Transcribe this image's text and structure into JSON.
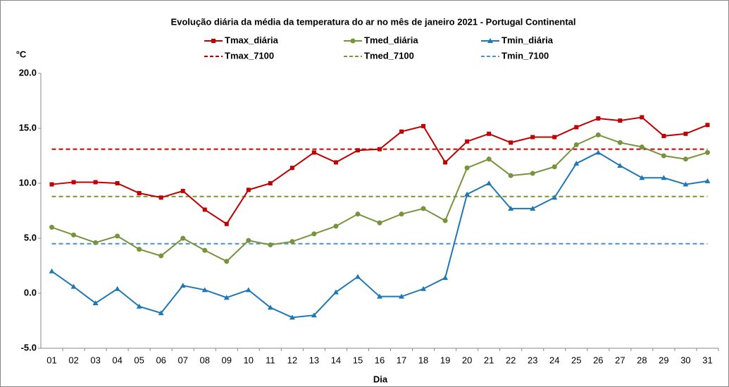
{
  "chart_data": {
    "type": "line",
    "title": "Evolução diária da média da temperatura do ar no mês de janeiro 2021 - Portugal Continental",
    "y_label": "°C",
    "x_label": "Dia",
    "categories": [
      "01",
      "02",
      "03",
      "04",
      "05",
      "06",
      "07",
      "08",
      "09",
      "10",
      "11",
      "12",
      "13",
      "14",
      "15",
      "16",
      "17",
      "18",
      "19",
      "20",
      "21",
      "22",
      "23",
      "24",
      "25",
      "26",
      "27",
      "28",
      "29",
      "30",
      "31"
    ],
    "series": [
      {
        "name": "Tmax_diária",
        "color": "#c00000",
        "marker": "square",
        "values": [
          9.9,
          10.1,
          10.1,
          10.0,
          9.1,
          8.7,
          9.3,
          7.6,
          6.3,
          9.4,
          10.0,
          11.4,
          12.8,
          11.9,
          13.0,
          13.1,
          14.7,
          15.2,
          11.9,
          13.8,
          14.5,
          13.7,
          14.2,
          14.2,
          15.1,
          15.9,
          15.7,
          16.0,
          14.3,
          14.5,
          15.3
        ]
      },
      {
        "name": "Tmed_diária",
        "color": "#77933c",
        "marker": "circle",
        "values": [
          6.0,
          5.3,
          4.6,
          5.2,
          4.0,
          3.4,
          5.0,
          3.9,
          2.9,
          4.8,
          4.4,
          4.7,
          5.4,
          6.1,
          7.2,
          6.4,
          7.2,
          7.7,
          6.6,
          11.4,
          12.2,
          10.7,
          10.9,
          11.5,
          13.5,
          14.4,
          13.7,
          13.3,
          12.5,
          12.2,
          12.8
        ]
      },
      {
        "name": "Tmin_diária",
        "color": "#1f77b4",
        "marker": "triangle",
        "values": [
          2.0,
          0.6,
          -0.9,
          0.4,
          -1.2,
          -1.8,
          0.7,
          0.3,
          -0.4,
          0.3,
          -1.3,
          -2.2,
          -2.0,
          0.1,
          1.5,
          -0.3,
          -0.3,
          0.4,
          1.4,
          9.0,
          10.0,
          7.7,
          7.7,
          8.7,
          11.8,
          12.8,
          11.6,
          10.5,
          10.5,
          9.9,
          10.2
        ]
      }
    ],
    "reference_lines": [
      {
        "name": "Tmax_7100",
        "color": "#c00000",
        "value": 13.1
      },
      {
        "name": "Tmed_7100",
        "color": "#77933c",
        "value": 8.8
      },
      {
        "name": "Tmin_7100",
        "color": "#4a8fd6",
        "value": 4.5
      }
    ],
    "ylim": [
      -5,
      20
    ],
    "yticks": [
      {
        "value": -5,
        "label": "-5.0"
      },
      {
        "value": 0,
        "label": "0.0"
      },
      {
        "value": 5,
        "label": "5.0"
      },
      {
        "value": 10,
        "label": "10.0"
      },
      {
        "value": 15,
        "label": "15.0"
      },
      {
        "value": 20,
        "label": "20.0"
      }
    ],
    "grid": false,
    "legend": "top"
  }
}
